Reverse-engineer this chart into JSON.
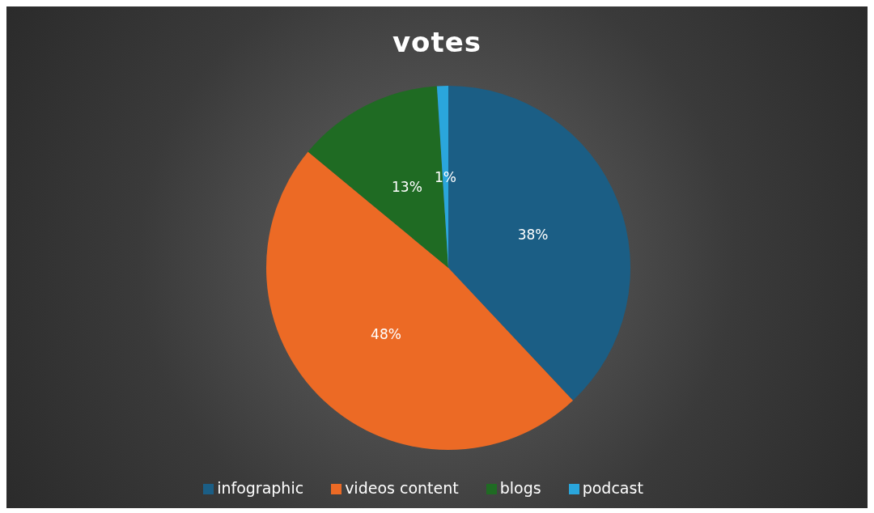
{
  "chart_data": {
    "type": "pie",
    "title": "votes",
    "categories": [
      "infographic",
      "videos content",
      "blogs",
      "podcast"
    ],
    "values": [
      38,
      48,
      13,
      1
    ],
    "colors": [
      "#1b5e85",
      "#ec6a25",
      "#1f6b23",
      "#2aa6dc"
    ],
    "value_labels": [
      "38%",
      "48%",
      "13%",
      "1%"
    ],
    "legend": "bottom"
  }
}
